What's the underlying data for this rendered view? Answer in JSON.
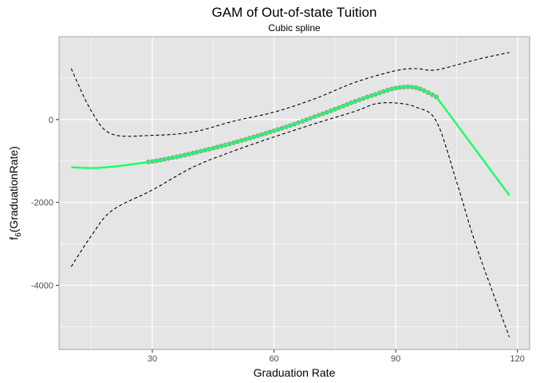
{
  "chart_data": {
    "type": "line",
    "title": "GAM of Out-of-state Tuition",
    "subtitle": "Cubic spline",
    "xlabel": "Graduation Rate",
    "ylabel": {
      "main": "f",
      "sub": "6",
      "rest": "(GraduationRate)"
    },
    "xlim": [
      7,
      123
    ],
    "ylim": [
      -5550,
      2000
    ],
    "x_ticks": [
      30,
      60,
      90,
      120
    ],
    "y_ticks": [
      0,
      -2000,
      -4000
    ],
    "y_tick_labels": [
      "0",
      "-2000",
      "-4000"
    ],
    "grid": true,
    "legend": "none",
    "colors": {
      "panel": "#e5e5e5",
      "grid": "#ffffff",
      "fit_line": "#1aff66",
      "points": "#4c8a5c",
      "band": "#000000"
    },
    "series": [
      {
        "role": "fit",
        "x": [
          10,
          15,
          20,
          25,
          30,
          35,
          40,
          45,
          50,
          55,
          60,
          65,
          70,
          75,
          80,
          85,
          90,
          95,
          100,
          118
        ],
        "y": [
          -1150,
          -1170,
          -1140,
          -1080,
          -1010,
          -920,
          -810,
          -690,
          -560,
          -420,
          -270,
          -110,
          70,
          250,
          440,
          610,
          760,
          770,
          550,
          -1830
        ]
      },
      {
        "role": "upper",
        "x": [
          10,
          15,
          20,
          30,
          40,
          50,
          60,
          70,
          80,
          90,
          95,
          100,
          110,
          118
        ],
        "y": [
          1230,
          200,
          -350,
          -380,
          -300,
          -40,
          180,
          500,
          900,
          1180,
          1230,
          1200,
          1450,
          1620
        ]
      },
      {
        "role": "lower",
        "x": [
          10,
          15,
          20,
          30,
          40,
          50,
          60,
          70,
          80,
          85,
          90,
          95,
          100,
          105,
          110,
          118
        ],
        "y": [
          -3550,
          -2800,
          -2200,
          -1700,
          -1150,
          -760,
          -420,
          -100,
          200,
          380,
          400,
          300,
          -40,
          -1500,
          -3100,
          -5250
        ]
      },
      {
        "role": "observations",
        "x_from": 29,
        "x_to": 100
      }
    ]
  }
}
